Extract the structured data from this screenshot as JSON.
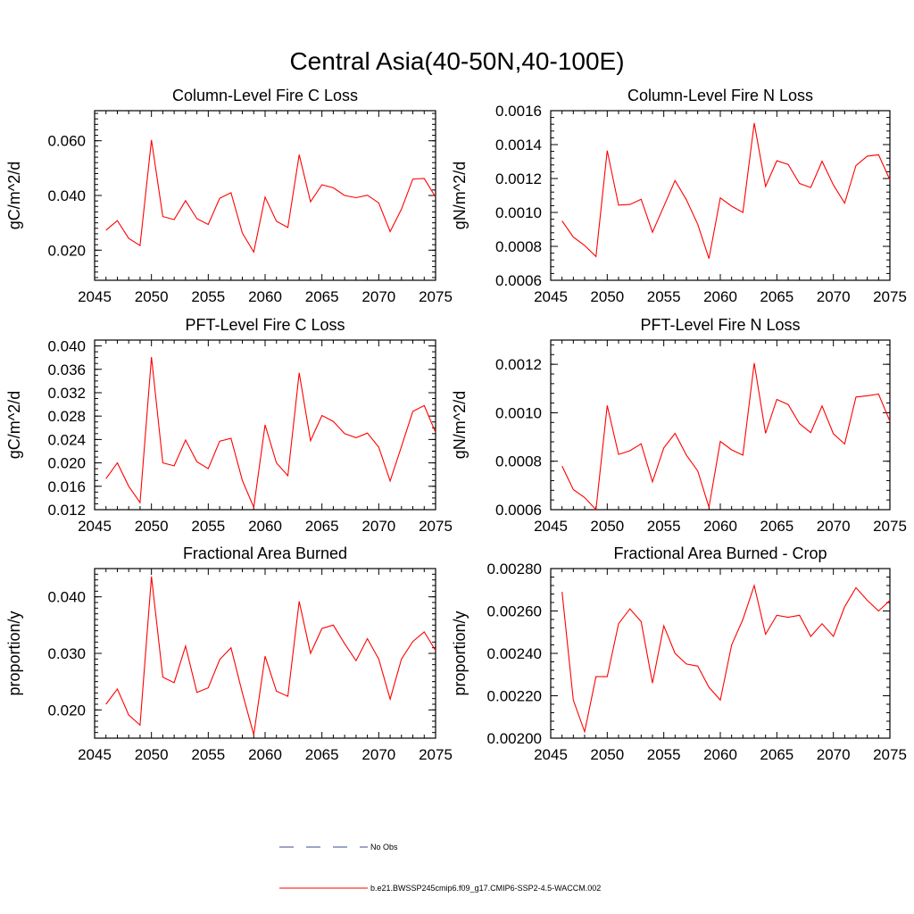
{
  "title": "Central Asia(40-50N,40-100E)",
  "colors": {
    "model": "#ff0000",
    "obs": "#3b4a8c",
    "axis": "#000000"
  },
  "legend": {
    "obs_label": "No Obs",
    "model_label": "b.e21.BWSSP245cmip6.f09_g17.CMIP6-SSP2-4.5-WACCM.002"
  },
  "chart_data": [
    {
      "type": "line",
      "title": "Column-Level Fire C Loss",
      "ylabel": "gC/m^2/d",
      "xlim": [
        2045,
        2075
      ],
      "ylim": [
        0.009,
        0.071
      ],
      "xticks": [
        2045,
        2050,
        2055,
        2060,
        2065,
        2070,
        2075
      ],
      "xticklabels": [
        "2045",
        "2050",
        "2055",
        "2060",
        "2065",
        "2070",
        "2075"
      ],
      "yticks": [
        0.02,
        0.04,
        0.06
      ],
      "yticklabels": [
        "0.020",
        "0.040",
        "0.060"
      ],
      "yminor": 0.002,
      "x": [
        2046,
        2047,
        2048,
        2049,
        2050,
        2051,
        2052,
        2053,
        2054,
        2055,
        2056,
        2057,
        2058,
        2059,
        2060,
        2061,
        2062,
        2063,
        2064,
        2065,
        2066,
        2067,
        2068,
        2069,
        2070,
        2071,
        2072,
        2073,
        2074,
        2075
      ],
      "series": [
        {
          "values": [
            0.0273,
            0.0308,
            0.0243,
            0.0217,
            0.0603,
            0.0323,
            0.0312,
            0.0381,
            0.0315,
            0.0294,
            0.039,
            0.041,
            0.0263,
            0.0193,
            0.0394,
            0.0306,
            0.0283,
            0.0549,
            0.0377,
            0.0439,
            0.0428,
            0.04,
            0.0392,
            0.0401,
            0.0373,
            0.0268,
            0.035,
            0.046,
            0.0462,
            0.0394
          ]
        }
      ]
    },
    {
      "type": "line",
      "title": "Column-Level Fire N Loss",
      "ylabel": "gN/m^2/d",
      "xlim": [
        2045,
        2075
      ],
      "ylim": [
        0.0006,
        0.0016
      ],
      "xticks": [
        2045,
        2050,
        2055,
        2060,
        2065,
        2070,
        2075
      ],
      "xticklabels": [
        "2045",
        "2050",
        "2055",
        "2060",
        "2065",
        "2070",
        "2075"
      ],
      "yticks": [
        0.0006,
        0.0008,
        0.001,
        0.0012,
        0.0014,
        0.0016
      ],
      "yticklabels": [
        "0.0006",
        "0.0008",
        "0.0010",
        "0.0012",
        "0.0014",
        "0.0016"
      ],
      "yminor": 4e-05,
      "x": [
        2046,
        2047,
        2048,
        2049,
        2050,
        2051,
        2052,
        2053,
        2054,
        2055,
        2056,
        2057,
        2058,
        2059,
        2060,
        2061,
        2062,
        2063,
        2064,
        2065,
        2066,
        2067,
        2068,
        2069,
        2070,
        2071,
        2072,
        2073,
        2074,
        2075
      ],
      "series": [
        {
          "values": [
            0.00095,
            0.000855,
            0.000805,
            0.00074,
            0.001365,
            0.001043,
            0.001047,
            0.001078,
            0.000883,
            0.001036,
            0.001188,
            0.001075,
            0.00093,
            0.000728,
            0.001086,
            0.001037,
            0.001,
            0.001527,
            0.001153,
            0.001305,
            0.001283,
            0.001171,
            0.001147,
            0.001302,
            0.001162,
            0.001055,
            0.001277,
            0.001332,
            0.00134,
            0.001192
          ]
        }
      ]
    },
    {
      "type": "line",
      "title": "PFT-Level Fire C Loss",
      "ylabel": "gC/m^2/d",
      "xlim": [
        2045,
        2075
      ],
      "ylim": [
        0.012,
        0.041
      ],
      "xticks": [
        2045,
        2050,
        2055,
        2060,
        2065,
        2070,
        2075
      ],
      "xticklabels": [
        "2045",
        "2050",
        "2055",
        "2060",
        "2065",
        "2070",
        "2075"
      ],
      "yticks": [
        0.012,
        0.016,
        0.02,
        0.024,
        0.028,
        0.032,
        0.036,
        0.04
      ],
      "yticklabels": [
        "0.012",
        "0.016",
        "0.020",
        "0.024",
        "0.028",
        "0.032",
        "0.036",
        "0.040"
      ],
      "yminor": 0.001,
      "x": [
        2046,
        2047,
        2048,
        2049,
        2050,
        2051,
        2052,
        2053,
        2054,
        2055,
        2056,
        2057,
        2058,
        2059,
        2060,
        2061,
        2062,
        2063,
        2064,
        2065,
        2066,
        2067,
        2068,
        2069,
        2070,
        2071,
        2072,
        2073,
        2074,
        2075
      ],
      "series": [
        {
          "values": [
            0.0173,
            0.02,
            0.016,
            0.0132,
            0.0381,
            0.02,
            0.0195,
            0.0239,
            0.0202,
            0.019,
            0.0237,
            0.0242,
            0.017,
            0.0124,
            0.0265,
            0.02,
            0.0178,
            0.0354,
            0.0238,
            0.0281,
            0.0271,
            0.025,
            0.0243,
            0.0251,
            0.0227,
            0.0169,
            0.0228,
            0.0288,
            0.0298,
            0.0252
          ]
        }
      ]
    },
    {
      "type": "line",
      "title": "PFT-Level Fire N Loss",
      "ylabel": "gN/m^2/d",
      "xlim": [
        2045,
        2075
      ],
      "ylim": [
        0.0006,
        0.0013
      ],
      "xticks": [
        2045,
        2050,
        2055,
        2060,
        2065,
        2070,
        2075
      ],
      "xticklabels": [
        "2045",
        "2050",
        "2055",
        "2060",
        "2065",
        "2070",
        "2075"
      ],
      "yticks": [
        0.0006,
        0.0008,
        0.001,
        0.0012
      ],
      "yticklabels": [
        "0.0006",
        "0.0008",
        "0.0010",
        "0.0012"
      ],
      "yminor": 4e-05,
      "x": [
        2046,
        2047,
        2048,
        2049,
        2050,
        2051,
        2052,
        2053,
        2054,
        2055,
        2056,
        2057,
        2058,
        2059,
        2060,
        2061,
        2062,
        2063,
        2064,
        2065,
        2066,
        2067,
        2068,
        2069,
        2070,
        2071,
        2072,
        2073,
        2074,
        2075
      ],
      "series": [
        {
          "values": [
            0.00078,
            0.000683,
            0.00065,
            0.0006,
            0.00103,
            0.000828,
            0.000843,
            0.000872,
            0.000715,
            0.000855,
            0.000915,
            0.000825,
            0.00076,
            0.00061,
            0.000882,
            0.000847,
            0.000825,
            0.001205,
            0.000915,
            0.001055,
            0.001034,
            0.000955,
            0.000918,
            0.001028,
            0.000913,
            0.000871,
            0.001065,
            0.00107,
            0.001077,
            0.000965
          ]
        }
      ]
    },
    {
      "type": "line",
      "title": "Fractional Area Burned",
      "ylabel": "proportion/y",
      "xlim": [
        2045,
        2075
      ],
      "ylim": [
        0.015,
        0.045
      ],
      "xticks": [
        2045,
        2050,
        2055,
        2060,
        2065,
        2070,
        2075
      ],
      "xticklabels": [
        "2045",
        "2050",
        "2055",
        "2060",
        "2065",
        "2070",
        "2075"
      ],
      "yticks": [
        0.02,
        0.03,
        0.04
      ],
      "yticklabels": [
        "0.020",
        "0.030",
        "0.040"
      ],
      "yminor": 0.001,
      "x": [
        2046,
        2047,
        2048,
        2049,
        2050,
        2051,
        2052,
        2053,
        2054,
        2055,
        2056,
        2057,
        2058,
        2059,
        2060,
        2061,
        2062,
        2063,
        2064,
        2065,
        2066,
        2067,
        2068,
        2069,
        2070,
        2071,
        2072,
        2073,
        2074,
        2075
      ],
      "series": [
        {
          "values": [
            0.021,
            0.0237,
            0.0191,
            0.0173,
            0.0436,
            0.0258,
            0.0248,
            0.0313,
            0.0231,
            0.0239,
            0.0289,
            0.031,
            0.023,
            0.0156,
            0.0295,
            0.0233,
            0.0224,
            0.0392,
            0.03,
            0.0344,
            0.035,
            0.0317,
            0.0287,
            0.0326,
            0.029,
            0.0219,
            0.029,
            0.0321,
            0.0338,
            0.0305
          ]
        }
      ]
    },
    {
      "type": "line",
      "title": "Fractional Area Burned - Crop",
      "ylabel": "proportion/y",
      "xlim": [
        2045,
        2075
      ],
      "ylim": [
        0.002,
        0.0028
      ],
      "xticks": [
        2045,
        2050,
        2055,
        2060,
        2065,
        2070,
        2075
      ],
      "xticklabels": [
        "2045",
        "2050",
        "2055",
        "2060",
        "2065",
        "2070",
        "2075"
      ],
      "yticks": [
        0.002,
        0.0022,
        0.0024,
        0.0026,
        0.0028
      ],
      "yticklabels": [
        "0.00200",
        "0.00220",
        "0.00240",
        "0.00260",
        "0.00280"
      ],
      "yminor": 4e-05,
      "x": [
        2046,
        2047,
        2048,
        2049,
        2050,
        2051,
        2052,
        2053,
        2054,
        2055,
        2056,
        2057,
        2058,
        2059,
        2060,
        2061,
        2062,
        2063,
        2064,
        2065,
        2066,
        2067,
        2068,
        2069,
        2070,
        2071,
        2072,
        2073,
        2074,
        2075
      ],
      "series": [
        {
          "values": [
            0.00269,
            0.00218,
            0.00203,
            0.00229,
            0.00229,
            0.00254,
            0.00261,
            0.00255,
            0.00226,
            0.00253,
            0.0024,
            0.00235,
            0.00234,
            0.00224,
            0.00218,
            0.00244,
            0.00256,
            0.00272,
            0.00249,
            0.00258,
            0.00257,
            0.00258,
            0.00248,
            0.00254,
            0.00248,
            0.00262,
            0.00271,
            0.00265,
            0.0026,
            0.00265
          ]
        }
      ]
    }
  ]
}
